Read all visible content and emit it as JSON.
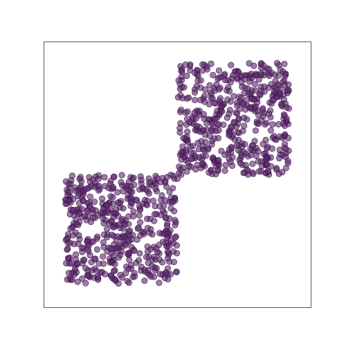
{
  "chart_data": {
    "type": "scatter",
    "title": "",
    "xlabel": "",
    "ylabel": "",
    "xlim": [
      0,
      1
    ],
    "ylim": [
      0,
      1
    ],
    "grid": false,
    "ticks_visible": false,
    "legend": "none",
    "series": [
      {
        "color": "#5c2a6b",
        "edge_color": "#3b0f4a",
        "opacity": 0.6,
        "points_per_cluster": 500,
        "clusters": [
          {
            "x_range": [
              0.08,
              0.5
            ],
            "y_range": [
              0.09,
              0.5
            ]
          },
          {
            "x_range": [
              0.5,
              0.92
            ],
            "y_range": [
              0.5,
              0.92
            ]
          }
        ]
      }
    ],
    "tick_labels": []
  }
}
